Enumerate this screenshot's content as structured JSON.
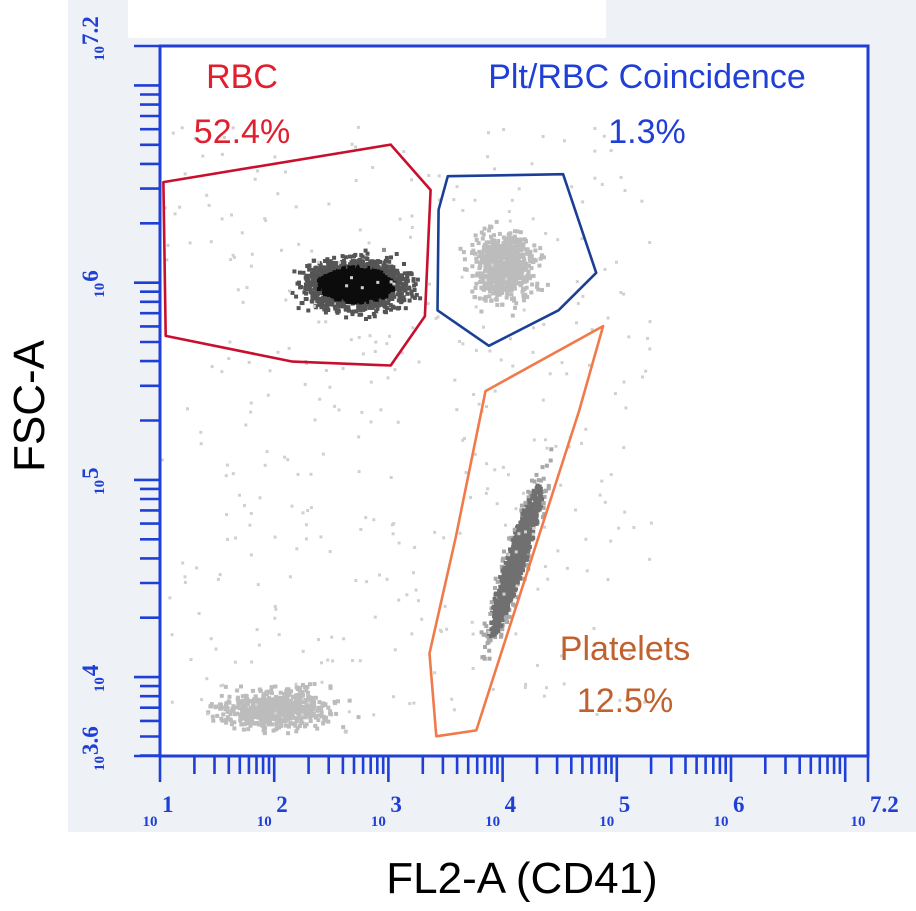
{
  "chart_data": {
    "type": "scatter",
    "subtype": "flow-cytometry density dot plot",
    "xlabel": "FL2-A (CD41)",
    "ylabel": "FSC-A",
    "x_scale": "log10",
    "y_scale": "log10",
    "xlim_log10": [
      1,
      7.2
    ],
    "ylim_log10": [
      3.6,
      7.2
    ],
    "x_ticks": [
      {
        "base": "10",
        "exp": "1",
        "value": 1
      },
      {
        "base": "10",
        "exp": "2",
        "value": 2
      },
      {
        "base": "10",
        "exp": "3",
        "value": 3
      },
      {
        "base": "10",
        "exp": "4",
        "value": 4
      },
      {
        "base": "10",
        "exp": "5",
        "value": 5
      },
      {
        "base": "10",
        "exp": "6",
        "value": 6
      },
      {
        "base": "10",
        "exp": "7.2",
        "value": 7.2
      }
    ],
    "y_ticks": [
      {
        "base": "10",
        "exp": "3.6",
        "value": 3.6
      },
      {
        "base": "10",
        "exp": "4",
        "value": 4
      },
      {
        "base": "10",
        "exp": "5",
        "value": 5
      },
      {
        "base": "10",
        "exp": "6",
        "value": 6
      },
      {
        "base": "10",
        "exp": "7.2",
        "value": 7.2
      }
    ],
    "gates": [
      {
        "name": "RBC",
        "percent": "52.4%",
        "color": "#c8102e",
        "vertices_log10": [
          [
            1.03,
            6.51
          ],
          [
            3.02,
            6.7
          ],
          [
            3.37,
            6.47
          ],
          [
            3.32,
            5.83
          ],
          [
            3.02,
            5.58
          ],
          [
            2.16,
            5.6
          ],
          [
            1.05,
            5.73
          ]
        ]
      },
      {
        "name": "Plt/RBC Coincidence",
        "percent": "1.3%",
        "color": "#1b3f94",
        "vertices_log10": [
          [
            3.52,
            6.54
          ],
          [
            4.53,
            6.55
          ],
          [
            4.82,
            6.05
          ],
          [
            4.49,
            5.86
          ],
          [
            3.88,
            5.68
          ],
          [
            3.43,
            5.86
          ],
          [
            3.44,
            6.37
          ]
        ]
      },
      {
        "name": "Platelets",
        "percent": "12.5%",
        "color": "#f07a4a",
        "vertices_log10": [
          [
            4.88,
            5.78
          ],
          [
            3.85,
            5.45
          ],
          [
            3.59,
            4.71
          ],
          [
            3.36,
            4.12
          ],
          [
            3.42,
            3.7
          ],
          [
            3.77,
            3.73
          ],
          [
            4.67,
            5.35
          ]
        ]
      }
    ],
    "density_regions": [
      {
        "label": "rbc-cloud",
        "center_log10": [
          2.7,
          6.0
        ],
        "spread_log10": [
          0.85,
          0.23
        ],
        "level": "high"
      },
      {
        "label": "coincidence-cloud",
        "center_log10": [
          4.0,
          6.1
        ],
        "spread_log10": [
          0.55,
          0.35
        ],
        "level": "low"
      },
      {
        "label": "platelet-cloud",
        "center_log10": [
          4.1,
          4.6
        ],
        "spread_log10": [
          0.45,
          0.75
        ],
        "level": "medium"
      },
      {
        "label": "low-debris",
        "center_log10": [
          2.0,
          3.85
        ],
        "spread_log10": [
          1.0,
          0.2
        ],
        "level": "low"
      }
    ],
    "grid": false,
    "legend": "none"
  }
}
